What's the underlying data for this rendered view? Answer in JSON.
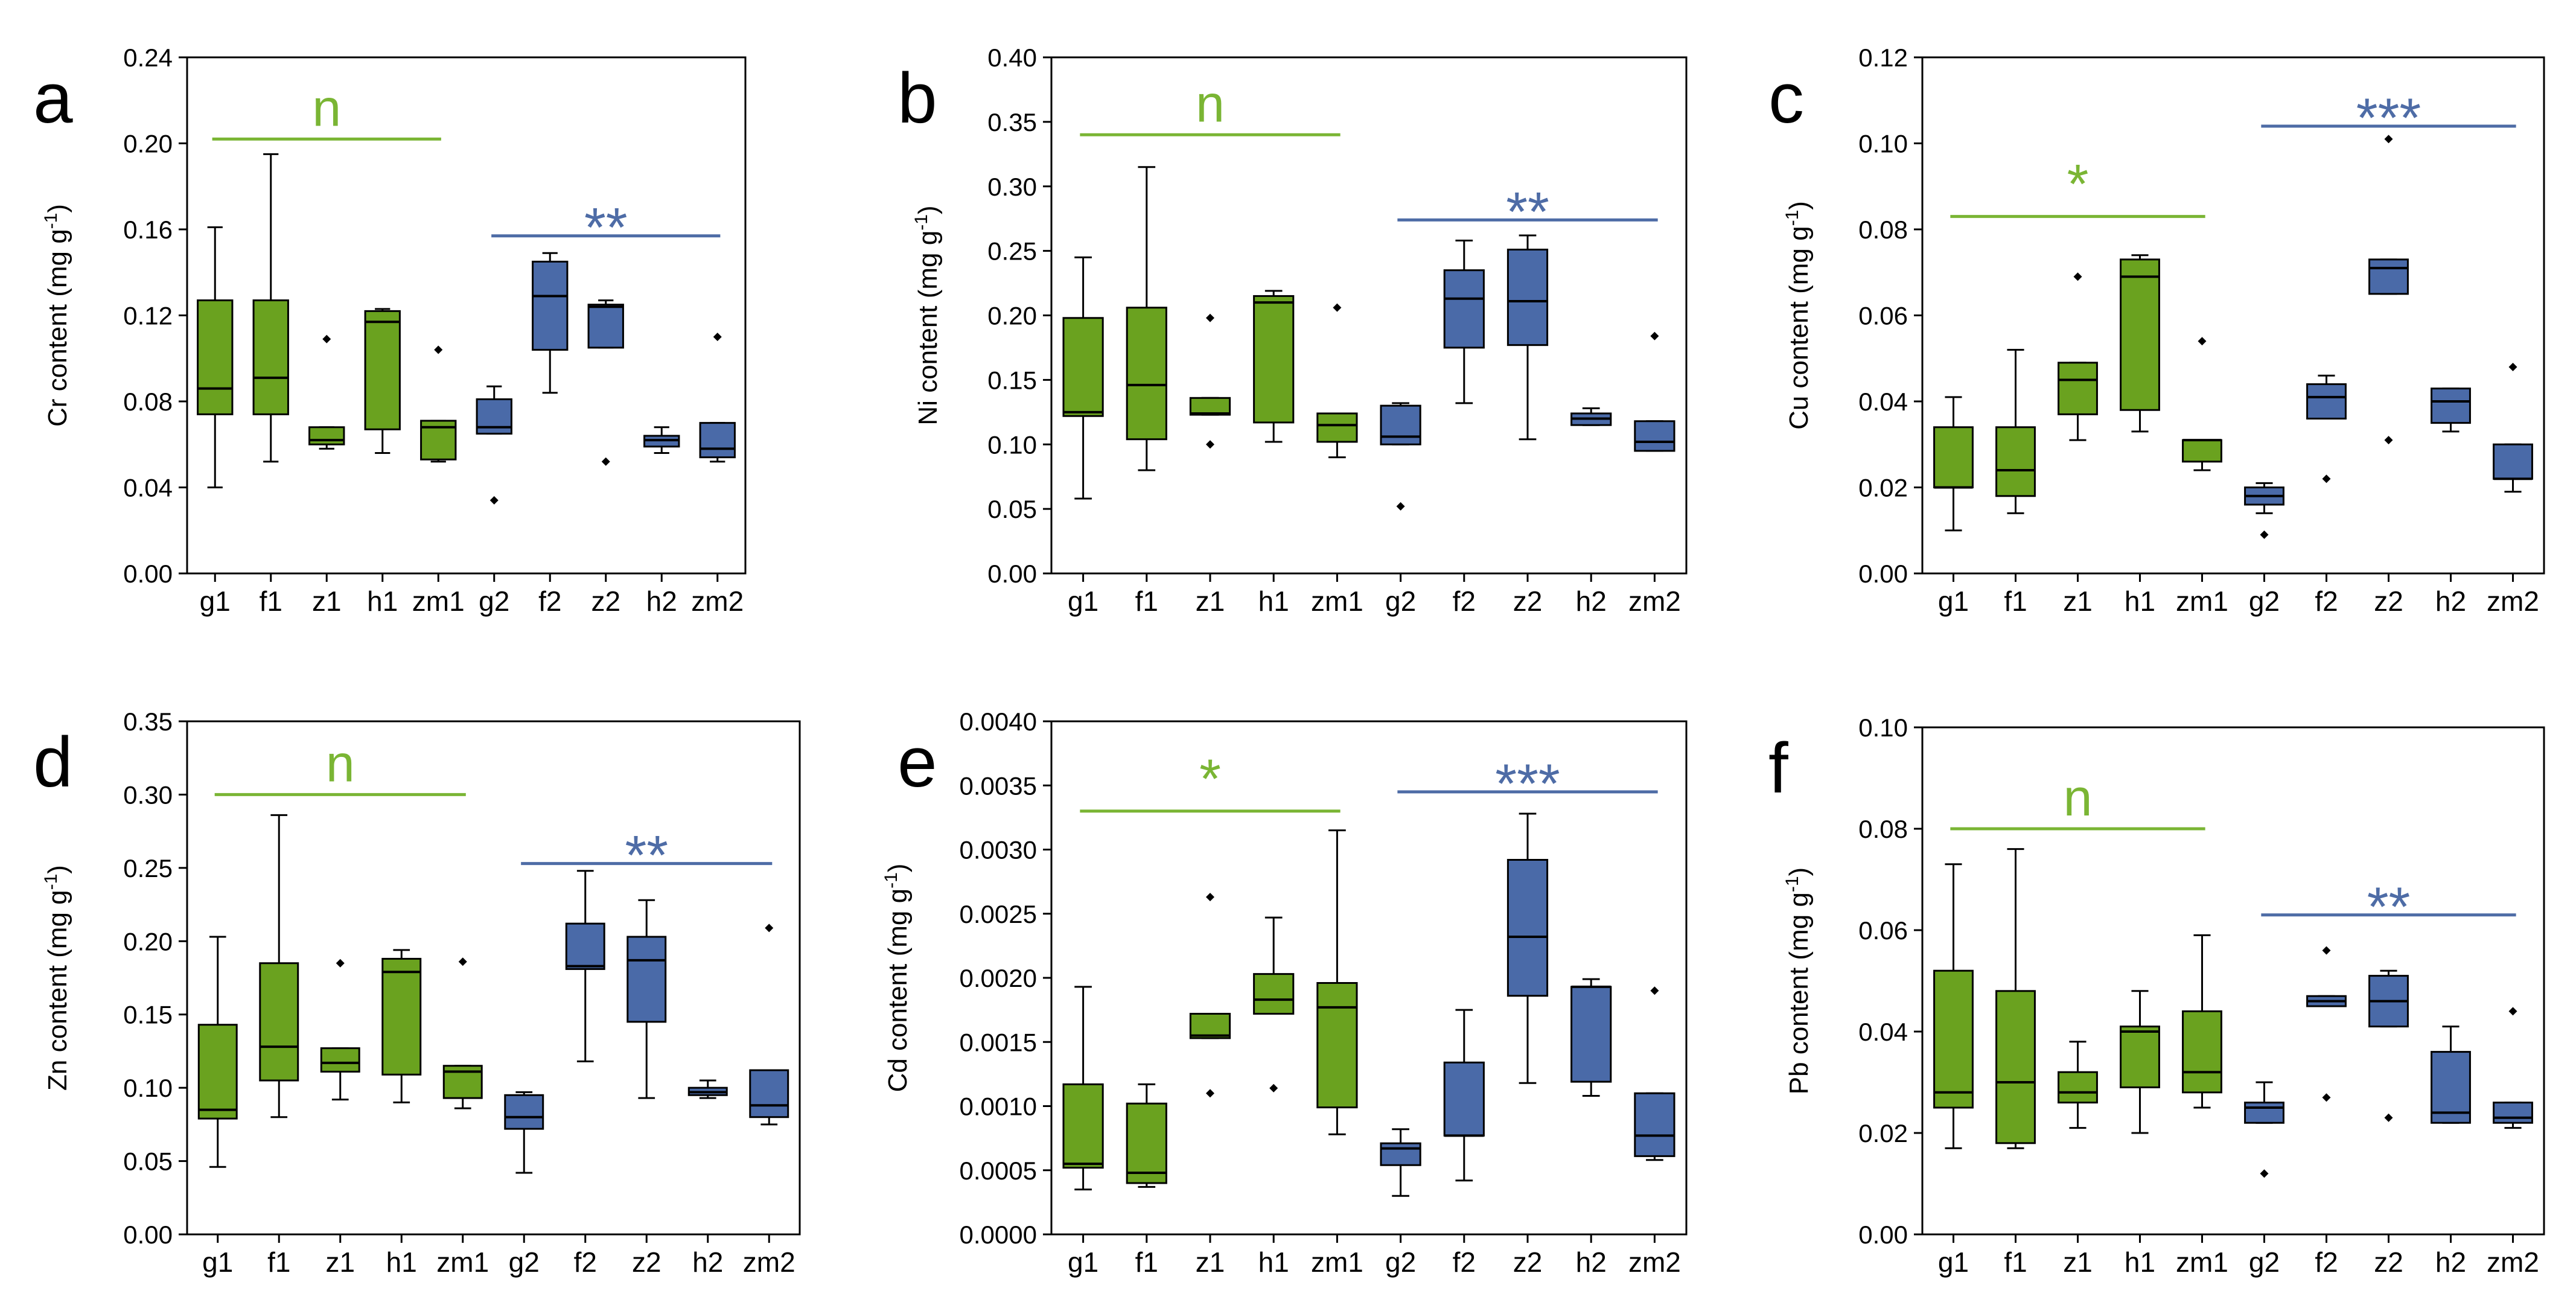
{
  "colors": {
    "group1": "#6aa21f",
    "group2": "#4a6aa8",
    "line1": "#7ab534",
    "line2": "#4e6ca6",
    "stroke": "#000000"
  },
  "categories": [
    "g1",
    "f1",
    "z1",
    "h1",
    "zm1",
    "g2",
    "f2",
    "z2",
    "h2",
    "zm2"
  ],
  "chart_data": [
    {
      "type": "box",
      "panel": "a",
      "ylabel_main": "Cr content (mg g",
      "ylabel_sup": "-1",
      "ylabel_end": ")",
      "ylim": [
        0,
        0.24
      ],
      "yticks": [
        "0.00",
        "0.04",
        "0.08",
        "0.12",
        "0.16",
        "0.20",
        "0.24"
      ],
      "boxes": [
        {
          "whislo": 0.04,
          "q1": 0.074,
          "med": 0.086,
          "q3": 0.127,
          "whishi": 0.161,
          "fliers": []
        },
        {
          "whislo": 0.052,
          "q1": 0.074,
          "med": 0.091,
          "q3": 0.127,
          "whishi": 0.195,
          "fliers": []
        },
        {
          "whislo": 0.058,
          "q1": 0.06,
          "med": 0.062,
          "q3": 0.068,
          "whishi": 0.068,
          "fliers": [
            0.109
          ]
        },
        {
          "whislo": 0.056,
          "q1": 0.067,
          "med": 0.117,
          "q3": 0.122,
          "whishi": 0.123,
          "fliers": []
        },
        {
          "whislo": 0.052,
          "q1": 0.053,
          "med": 0.068,
          "q3": 0.071,
          "whishi": 0.071,
          "fliers": [
            0.104
          ]
        },
        {
          "whislo": 0.065,
          "q1": 0.065,
          "med": 0.068,
          "q3": 0.081,
          "whishi": 0.087,
          "fliers": [
            0.034
          ]
        },
        {
          "whislo": 0.084,
          "q1": 0.104,
          "med": 0.129,
          "q3": 0.145,
          "whishi": 0.149,
          "fliers": []
        },
        {
          "whislo": 0.105,
          "q1": 0.105,
          "med": 0.124,
          "q3": 0.125,
          "whishi": 0.127,
          "fliers": [
            0.052
          ]
        },
        {
          "whislo": 0.056,
          "q1": 0.059,
          "med": 0.062,
          "q3": 0.064,
          "whishi": 0.068,
          "fliers": []
        },
        {
          "whislo": 0.052,
          "q1": 0.054,
          "med": 0.058,
          "q3": 0.07,
          "whishi": 0.07,
          "fliers": [
            0.11
          ]
        }
      ],
      "sig1": {
        "label": "n",
        "y": 0.202
      },
      "sig2": {
        "label": "**",
        "y": 0.157
      }
    },
    {
      "type": "box",
      "panel": "b",
      "ylabel_main": "Ni content (mg g",
      "ylabel_sup": "-1",
      "ylabel_end": ")",
      "ylim": [
        0,
        0.4
      ],
      "yticks": [
        "0.00",
        "0.05",
        "0.10",
        "0.15",
        "0.20",
        "0.25",
        "0.30",
        "0.35",
        "0.40"
      ],
      "boxes": [
        {
          "whislo": 0.058,
          "q1": 0.122,
          "med": 0.125,
          "q3": 0.198,
          "whishi": 0.245,
          "fliers": []
        },
        {
          "whislo": 0.08,
          "q1": 0.104,
          "med": 0.146,
          "q3": 0.206,
          "whishi": 0.315,
          "fliers": []
        },
        {
          "whislo": 0.123,
          "q1": 0.123,
          "med": 0.124,
          "q3": 0.136,
          "whishi": 0.136,
          "fliers": [
            0.198,
            0.1
          ]
        },
        {
          "whislo": 0.102,
          "q1": 0.117,
          "med": 0.21,
          "q3": 0.215,
          "whishi": 0.219,
          "fliers": []
        },
        {
          "whislo": 0.09,
          "q1": 0.102,
          "med": 0.115,
          "q3": 0.124,
          "whishi": 0.124,
          "fliers": [
            0.206
          ]
        },
        {
          "whislo": 0.1,
          "q1": 0.1,
          "med": 0.106,
          "q3": 0.13,
          "whishi": 0.132,
          "fliers": [
            0.052
          ]
        },
        {
          "whislo": 0.132,
          "q1": 0.175,
          "med": 0.213,
          "q3": 0.235,
          "whishi": 0.258,
          "fliers": []
        },
        {
          "whislo": 0.104,
          "q1": 0.177,
          "med": 0.211,
          "q3": 0.251,
          "whishi": 0.262,
          "fliers": []
        },
        {
          "whislo": 0.115,
          "q1": 0.115,
          "med": 0.12,
          "q3": 0.124,
          "whishi": 0.128,
          "fliers": []
        },
        {
          "whislo": 0.095,
          "q1": 0.095,
          "med": 0.102,
          "q3": 0.118,
          "whishi": 0.118,
          "fliers": [
            0.184
          ]
        }
      ],
      "sig1": {
        "label": "n",
        "y": 0.34
      },
      "sig2": {
        "label": "**",
        "y": 0.274
      }
    },
    {
      "type": "box",
      "panel": "c",
      "ylabel_main": "Cu content (mg g",
      "ylabel_sup": "-1",
      "ylabel_end": ")",
      "ylim": [
        0,
        0.12
      ],
      "yticks": [
        "0.00",
        "0.02",
        "0.04",
        "0.06",
        "0.08",
        "0.10",
        "0.12"
      ],
      "boxes": [
        {
          "whislo": 0.01,
          "q1": 0.02,
          "med": 0.02,
          "q3": 0.034,
          "whishi": 0.041,
          "fliers": []
        },
        {
          "whislo": 0.014,
          "q1": 0.018,
          "med": 0.024,
          "q3": 0.034,
          "whishi": 0.052,
          "fliers": []
        },
        {
          "whislo": 0.031,
          "q1": 0.037,
          "med": 0.045,
          "q3": 0.049,
          "whishi": 0.049,
          "fliers": [
            0.069
          ]
        },
        {
          "whislo": 0.033,
          "q1": 0.038,
          "med": 0.069,
          "q3": 0.073,
          "whishi": 0.074,
          "fliers": []
        },
        {
          "whislo": 0.024,
          "q1": 0.026,
          "med": 0.031,
          "q3": 0.031,
          "whishi": 0.031,
          "fliers": [
            0.054
          ]
        },
        {
          "whislo": 0.014,
          "q1": 0.016,
          "med": 0.018,
          "q3": 0.02,
          "whishi": 0.021,
          "fliers": [
            0.009
          ]
        },
        {
          "whislo": 0.036,
          "q1": 0.036,
          "med": 0.041,
          "q3": 0.044,
          "whishi": 0.046,
          "fliers": [
            0.022
          ]
        },
        {
          "whislo": 0.065,
          "q1": 0.065,
          "med": 0.071,
          "q3": 0.073,
          "whishi": 0.073,
          "fliers": [
            0.101,
            0.031
          ]
        },
        {
          "whislo": 0.033,
          "q1": 0.035,
          "med": 0.04,
          "q3": 0.043,
          "whishi": 0.043,
          "fliers": []
        },
        {
          "whislo": 0.019,
          "q1": 0.022,
          "med": 0.022,
          "q3": 0.03,
          "whishi": 0.03,
          "fliers": [
            0.048
          ]
        }
      ],
      "sig1": {
        "label": "*",
        "y": 0.083
      },
      "sig2": {
        "label": "***",
        "y": 0.104
      }
    },
    {
      "type": "box",
      "panel": "d",
      "ylabel_main": "Zn content (mg g",
      "ylabel_sup": "-1",
      "ylabel_end": ")",
      "ylim": [
        0,
        0.35
      ],
      "yticks": [
        "0.00",
        "0.05",
        "0.10",
        "0.15",
        "0.20",
        "0.25",
        "0.30",
        "0.35"
      ],
      "boxes": [
        {
          "whislo": 0.046,
          "q1": 0.079,
          "med": 0.085,
          "q3": 0.143,
          "whishi": 0.203,
          "fliers": []
        },
        {
          "whislo": 0.08,
          "q1": 0.105,
          "med": 0.128,
          "q3": 0.185,
          "whishi": 0.286,
          "fliers": []
        },
        {
          "whislo": 0.092,
          "q1": 0.111,
          "med": 0.117,
          "q3": 0.127,
          "whishi": 0.127,
          "fliers": [
            0.185
          ]
        },
        {
          "whislo": 0.09,
          "q1": 0.109,
          "med": 0.179,
          "q3": 0.188,
          "whishi": 0.194,
          "fliers": []
        },
        {
          "whislo": 0.086,
          "q1": 0.093,
          "med": 0.111,
          "q3": 0.115,
          "whishi": 0.115,
          "fliers": [
            0.186
          ]
        },
        {
          "whislo": 0.042,
          "q1": 0.072,
          "med": 0.08,
          "q3": 0.095,
          "whishi": 0.097,
          "fliers": []
        },
        {
          "whislo": 0.118,
          "q1": 0.181,
          "med": 0.183,
          "q3": 0.212,
          "whishi": 0.248,
          "fliers": []
        },
        {
          "whislo": 0.093,
          "q1": 0.145,
          "med": 0.187,
          "q3": 0.203,
          "whishi": 0.228,
          "fliers": []
        },
        {
          "whislo": 0.093,
          "q1": 0.095,
          "med": 0.097,
          "q3": 0.1,
          "whishi": 0.105,
          "fliers": []
        },
        {
          "whislo": 0.075,
          "q1": 0.08,
          "med": 0.088,
          "q3": 0.112,
          "whishi": 0.112,
          "fliers": [
            0.209
          ]
        }
      ],
      "sig1": {
        "label": "n",
        "y": 0.3
      },
      "sig2": {
        "label": "**",
        "y": 0.253
      }
    },
    {
      "type": "box",
      "panel": "e",
      "ylabel_main": "Cd content (mg g",
      "ylabel_sup": "-1",
      "ylabel_end": ")",
      "ylim": [
        0,
        0.004
      ],
      "yticks": [
        "0.0000",
        "0.0005",
        "0.0010",
        "0.0015",
        "0.0020",
        "0.0025",
        "0.0030",
        "0.0035",
        "0.0040"
      ],
      "boxes": [
        {
          "whislo": 0.00035,
          "q1": 0.00052,
          "med": 0.00055,
          "q3": 0.00117,
          "whishi": 0.00193,
          "fliers": []
        },
        {
          "whislo": 0.00037,
          "q1": 0.0004,
          "med": 0.00048,
          "q3": 0.00102,
          "whishi": 0.00117,
          "fliers": []
        },
        {
          "whislo": 0.00153,
          "q1": 0.00153,
          "med": 0.00155,
          "q3": 0.00172,
          "whishi": 0.00172,
          "fliers": [
            0.00263,
            0.0011
          ]
        },
        {
          "whislo": 0.00172,
          "q1": 0.00172,
          "med": 0.00183,
          "q3": 0.00203,
          "whishi": 0.00247,
          "fliers": [
            0.00114
          ]
        },
        {
          "whislo": 0.00078,
          "q1": 0.00099,
          "med": 0.00177,
          "q3": 0.00196,
          "whishi": 0.00315,
          "fliers": []
        },
        {
          "whislo": 0.0003,
          "q1": 0.00054,
          "med": 0.00067,
          "q3": 0.00071,
          "whishi": 0.00082,
          "fliers": []
        },
        {
          "whislo": 0.00042,
          "q1": 0.00077,
          "med": 0.00077,
          "q3": 0.00134,
          "whishi": 0.00175,
          "fliers": []
        },
        {
          "whislo": 0.00118,
          "q1": 0.00186,
          "med": 0.00232,
          "q3": 0.00292,
          "whishi": 0.00328,
          "fliers": []
        },
        {
          "whislo": 0.00108,
          "q1": 0.00119,
          "med": 0.00193,
          "q3": 0.00193,
          "whishi": 0.00199,
          "fliers": []
        },
        {
          "whislo": 0.00058,
          "q1": 0.00061,
          "med": 0.00077,
          "q3": 0.0011,
          "whishi": 0.0011,
          "fliers": [
            0.0019
          ]
        }
      ],
      "sig1": {
        "label": "*",
        "y": 0.0033
      },
      "sig2": {
        "label": "***",
        "y": 0.00345
      }
    },
    {
      "type": "box",
      "panel": "f",
      "ylabel_main": "Pb content (mg g",
      "ylabel_sup": "-1",
      "ylabel_end": ")",
      "ylim": [
        0,
        0.1
      ],
      "yticks": [
        "0.00",
        "0.02",
        "0.04",
        "0.06",
        "0.08",
        "0.10"
      ],
      "boxes": [
        {
          "whislo": 0.017,
          "q1": 0.025,
          "med": 0.028,
          "q3": 0.052,
          "whishi": 0.073,
          "fliers": []
        },
        {
          "whislo": 0.017,
          "q1": 0.018,
          "med": 0.03,
          "q3": 0.048,
          "whishi": 0.076,
          "fliers": []
        },
        {
          "whislo": 0.021,
          "q1": 0.026,
          "med": 0.028,
          "q3": 0.032,
          "whishi": 0.038,
          "fliers": []
        },
        {
          "whislo": 0.02,
          "q1": 0.029,
          "med": 0.04,
          "q3": 0.041,
          "whishi": 0.048,
          "fliers": []
        },
        {
          "whislo": 0.025,
          "q1": 0.028,
          "med": 0.032,
          "q3": 0.044,
          "whishi": 0.059,
          "fliers": []
        },
        {
          "whislo": 0.022,
          "q1": 0.022,
          "med": 0.025,
          "q3": 0.026,
          "whishi": 0.03,
          "fliers": [
            0.012
          ]
        },
        {
          "whislo": 0.045,
          "q1": 0.045,
          "med": 0.046,
          "q3": 0.047,
          "whishi": 0.047,
          "fliers": [
            0.056,
            0.027
          ]
        },
        {
          "whislo": 0.041,
          "q1": 0.041,
          "med": 0.046,
          "q3": 0.051,
          "whishi": 0.052,
          "fliers": [
            0.023
          ]
        },
        {
          "whislo": 0.022,
          "q1": 0.022,
          "med": 0.024,
          "q3": 0.036,
          "whishi": 0.041,
          "fliers": []
        },
        {
          "whislo": 0.021,
          "q1": 0.022,
          "med": 0.023,
          "q3": 0.026,
          "whishi": 0.026,
          "fliers": [
            0.044
          ]
        }
      ],
      "sig1": {
        "label": "n",
        "y": 0.08
      },
      "sig2": {
        "label": "**",
        "y": 0.063
      }
    }
  ]
}
